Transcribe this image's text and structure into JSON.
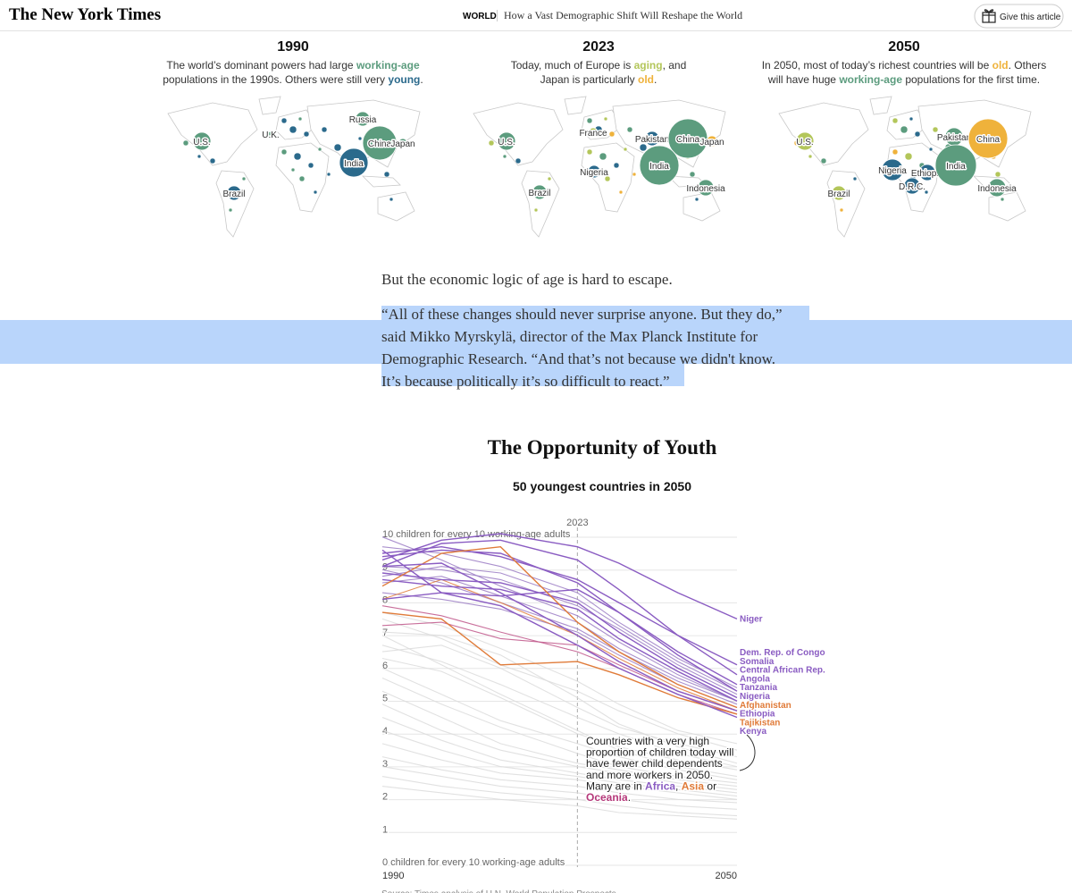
{
  "header": {
    "logo": "The New York Times",
    "section": "WORLD",
    "headline": "How a Vast Demographic Shift Will Reshape the World",
    "button": "Give this article"
  },
  "groups": {
    "working-age": "#5c9c7e",
    "young": "#2b6a8c",
    "aging": "#b3c65a",
    "old": "#efb23b"
  },
  "maps": [
    {
      "title": "1990",
      "lines": [
        [
          {
            "text": "The world’s dominant powers had large "
          },
          {
            "text": "working-age",
            "group": "working-age"
          }
        ],
        [
          {
            "text": "populations in the 1990s. Others were still very "
          },
          {
            "text": "young",
            "group": "young"
          },
          {
            "text": "."
          }
        ]
      ],
      "bubbles": [
        {
          "label": "U.S.",
          "group": "working-age"
        },
        {
          "label": "U.K.",
          "group": "working-age"
        },
        {
          "label": "Russia",
          "group": "working-age"
        },
        {
          "label": "China",
          "group": "working-age"
        },
        {
          "label": "Japan",
          "group": "working-age"
        },
        {
          "label": "India",
          "group": "young"
        },
        {
          "label": "Brazil",
          "group": "young"
        }
      ]
    },
    {
      "title": "2023",
      "lines": [
        [
          {
            "text": "Today, much of Europe is "
          },
          {
            "text": "aging",
            "group": "aging"
          },
          {
            "text": ", and"
          }
        ],
        [
          {
            "text": "Japan is particularly "
          },
          {
            "text": "old",
            "group": "old"
          },
          {
            "text": "."
          }
        ]
      ],
      "bubbles": [
        {
          "label": "U.S.",
          "group": "working-age"
        },
        {
          "label": "France",
          "group": "aging"
        },
        {
          "label": "Pakistan",
          "group": "young"
        },
        {
          "label": "China",
          "group": "working-age"
        },
        {
          "label": "Japan",
          "group": "old"
        },
        {
          "label": "Nigeria",
          "group": "young"
        },
        {
          "label": "India",
          "group": "working-age"
        },
        {
          "label": "Brazil",
          "group": "working-age"
        },
        {
          "label": "Indonesia",
          "group": "working-age"
        }
      ]
    },
    {
      "title": "2050",
      "lines": [
        [
          {
            "text": "In 2050, most of today’s richest countries will be "
          },
          {
            "text": "old",
            "group": "old"
          },
          {
            "text": ". Others"
          }
        ],
        [
          {
            "text": "will have huge "
          },
          {
            "text": "working-age",
            "group": "working-age"
          },
          {
            "text": " populations for the first time."
          }
        ]
      ],
      "bubbles": [
        {
          "label": "U.S.",
          "group": "aging"
        },
        {
          "label": "Pakistan",
          "group": "working-age"
        },
        {
          "label": "China",
          "group": "old"
        },
        {
          "label": "Nigeria",
          "group": "young"
        },
        {
          "label": "Ethiopia",
          "group": "young"
        },
        {
          "label": "India",
          "group": "working-age"
        },
        {
          "label": "D.R.C.",
          "group": "young"
        },
        {
          "label": "Brazil",
          "group": "aging"
        },
        {
          "label": "Indonesia",
          "group": "working-age"
        }
      ]
    }
  ],
  "paragraph": "But the economic logic of age is hard to escape.",
  "quote": [
    "“All of these changes should never surprise anyone. But they do,”",
    "said Mikko Myrskylä, director of the Max Planck Institute for",
    "Demographic Research. “And that’s not because we didn't know.",
    "It’s because politically it’s so difficult to react.”"
  ],
  "chart_data": {
    "type": "line",
    "title": "The Opportunity of Youth",
    "subtitle": "50 youngest countries in 2050",
    "x": [
      1990,
      2000,
      2010,
      2023,
      2030,
      2040,
      2050
    ],
    "xlim": [
      1990,
      2050
    ],
    "xticks": [
      1990,
      2050
    ],
    "marker": 2023,
    "ylim": [
      0,
      10
    ],
    "yticks": [
      {
        "value": 0,
        "label": "0 children for every 10 working-age adults"
      },
      1,
      2,
      3,
      4,
      5,
      6,
      7,
      8,
      9,
      {
        "value": 10,
        "label": "10 children for every 10 working-age adults"
      }
    ],
    "grid": true,
    "series": [
      {
        "color": "#dcdcdc",
        "values": [
          7.4,
          6.8,
          6.0,
          5.2,
          4.6,
          3.9,
          3.4
        ]
      },
      {
        "color": "#dcdcdc",
        "values": [
          7.0,
          6.9,
          6.3,
          5.0,
          4.2,
          3.5,
          3.0
        ]
      },
      {
        "color": "#dcdcdc",
        "values": [
          6.6,
          6.1,
          5.4,
          4.4,
          3.9,
          3.3,
          2.9
        ]
      },
      {
        "color": "#dcdcdc",
        "values": [
          6.9,
          6.0,
          5.1,
          4.0,
          3.4,
          2.9,
          2.6
        ]
      },
      {
        "color": "#dcdcdc",
        "values": [
          6.2,
          5.8,
          5.0,
          3.9,
          3.5,
          3.1,
          2.8
        ]
      },
      {
        "color": "#dcdcdc",
        "values": [
          5.9,
          5.1,
          4.3,
          3.6,
          3.2,
          2.8,
          2.5
        ]
      },
      {
        "color": "#dcdcdc",
        "values": [
          5.6,
          4.8,
          4.1,
          3.3,
          2.9,
          2.6,
          2.4
        ]
      },
      {
        "color": "#dcdcdc",
        "values": [
          5.2,
          4.4,
          3.6,
          3.0,
          2.8,
          2.5,
          2.3
        ]
      },
      {
        "color": "#dcdcdc",
        "values": [
          4.8,
          4.0,
          3.4,
          2.9,
          2.7,
          2.4,
          2.2
        ]
      },
      {
        "color": "#dcdcdc",
        "values": [
          4.4,
          3.7,
          3.1,
          2.7,
          2.5,
          2.3,
          2.1
        ]
      },
      {
        "color": "#dcdcdc",
        "values": [
          4.0,
          3.4,
          2.9,
          2.6,
          2.4,
          2.2,
          2.0
        ]
      },
      {
        "color": "#dcdcdc",
        "values": [
          3.6,
          3.1,
          2.7,
          2.5,
          2.3,
          2.1,
          1.9
        ]
      },
      {
        "color": "#dcdcdc",
        "values": [
          3.2,
          2.8,
          2.5,
          2.3,
          2.1,
          1.9,
          1.8
        ]
      },
      {
        "color": "#dcdcdc",
        "values": [
          2.9,
          2.6,
          2.3,
          2.1,
          1.9,
          1.7,
          1.6
        ]
      },
      {
        "color": "#dcdcdc",
        "values": [
          2.6,
          2.3,
          2.1,
          1.9,
          1.7,
          1.5,
          1.4
        ]
      },
      {
        "color": "#dcdcdc",
        "values": [
          2.3,
          2.1,
          1.9,
          1.7,
          1.5,
          1.4,
          1.3
        ]
      },
      {
        "color": "#dcdcdc",
        "values": [
          7.6,
          7.2,
          6.5,
          5.5,
          4.8,
          4.0,
          3.6
        ]
      },
      {
        "color": "#dcdcdc",
        "values": [
          6.4,
          6.6,
          5.9,
          4.7,
          4.1,
          3.6,
          3.2
        ]
      },
      {
        "color": "#9b7cc4",
        "values": [
          9.6,
          9.4,
          9.0,
          8.2,
          7.3,
          6.2,
          5.3
        ]
      },
      {
        "color": "#9b7cc4",
        "values": [
          9.0,
          8.9,
          8.6,
          7.8,
          7.1,
          6.0,
          5.1
        ]
      },
      {
        "color": "#9b7cc4",
        "values": [
          8.7,
          9.0,
          8.8,
          8.0,
          7.2,
          6.1,
          5.2
        ]
      },
      {
        "color": "#9b7cc4",
        "values": [
          8.9,
          8.5,
          7.9,
          7.1,
          6.4,
          5.5,
          4.8
        ]
      },
      {
        "color": "#9b7cc4",
        "values": [
          8.2,
          8.0,
          7.7,
          7.0,
          6.3,
          5.4,
          4.7
        ]
      },
      {
        "color": "#9b7cc4",
        "values": [
          9.9,
          9.2,
          8.4,
          7.5,
          6.7,
          5.7,
          4.9
        ]
      },
      {
        "color": "#c0568a",
        "values": [
          7.8,
          7.5,
          7.0,
          6.4,
          5.9,
          5.1,
          4.5
        ]
      },
      {
        "color": "#c0568a",
        "values": [
          7.2,
          7.3,
          6.8,
          6.6,
          6.0,
          5.2,
          4.6
        ]
      },
      {
        "color": "#9b7cc4",
        "values": [
          8.5,
          8.7,
          8.1,
          7.3,
          6.5,
          5.6,
          4.9
        ]
      },
      {
        "color": "#e07b39",
        "values": [
          8.0,
          8.6,
          7.9,
          6.9,
          6.2,
          5.3,
          4.6
        ]
      },
      {
        "name": "Niger",
        "color": "#8a5cc2",
        "values": [
          9.2,
          9.8,
          10,
          9.6,
          9.1,
          8.2,
          7.4
        ]
      },
      {
        "name": "Dem. Rep. of Congo",
        "color": "#8a5cc2",
        "values": [
          9.4,
          9.6,
          9.3,
          8.6,
          7.9,
          6.9,
          6.0
        ]
      },
      {
        "name": "Somalia",
        "color": "#8a5cc2",
        "values": [
          9.0,
          9.7,
          9.8,
          9.2,
          8.3,
          6.9,
          5.7
        ]
      },
      {
        "name": "Central African Rep.",
        "color": "#8a5cc2",
        "values": [
          8.0,
          8.2,
          8.1,
          8.3,
          7.6,
          6.4,
          5.4
        ]
      },
      {
        "name": "Angola",
        "color": "#8a5cc2",
        "values": [
          9.3,
          9.5,
          9.4,
          8.5,
          7.6,
          6.3,
          5.2
        ]
      },
      {
        "name": "Tanzania",
        "color": "#8a5cc2",
        "values": [
          8.8,
          8.6,
          8.5,
          7.9,
          7.0,
          5.9,
          5.0
        ]
      },
      {
        "name": "Nigeria",
        "color": "#8a5cc2",
        "values": [
          8.6,
          8.4,
          8.3,
          7.7,
          6.8,
          5.8,
          4.9
        ]
      },
      {
        "name": "Afghanistan",
        "color": "#e07b39",
        "values": [
          8.4,
          9.4,
          9.6,
          7.3,
          6.4,
          5.4,
          4.7
        ]
      },
      {
        "name": "Ethiopia",
        "color": "#8a5cc2",
        "values": [
          9.0,
          9.1,
          8.2,
          6.9,
          6.1,
          5.2,
          4.6
        ]
      },
      {
        "name": "Tajikistan",
        "color": "#e07b39",
        "values": [
          7.6,
          7.4,
          6.0,
          6.1,
          5.7,
          5.0,
          4.5
        ]
      },
      {
        "name": "Kenya",
        "color": "#8a5cc2",
        "values": [
          9.5,
          8.2,
          7.8,
          6.6,
          5.9,
          5.1,
          4.4
        ]
      }
    ],
    "annotation": [
      [
        {
          "text": "Countries with a very high"
        }
      ],
      [
        {
          "text": "proportion of children today will"
        }
      ],
      [
        {
          "text": "have fewer child dependents"
        }
      ],
      [
        {
          "text": "and more workers in 2050."
        }
      ],
      [
        {
          "text": "Many are in "
        },
        {
          "text": "Africa",
          "color": "#8a5cc2"
        },
        {
          "text": ", "
        },
        {
          "text": "Asia",
          "color": "#e07b39"
        },
        {
          "text": " or"
        }
      ],
      [
        {
          "text": "Oceania",
          "color": "#b5387a"
        },
        {
          "text": "."
        }
      ]
    ],
    "source": "Source: Times analysis of U.N. World Population Prospects"
  }
}
